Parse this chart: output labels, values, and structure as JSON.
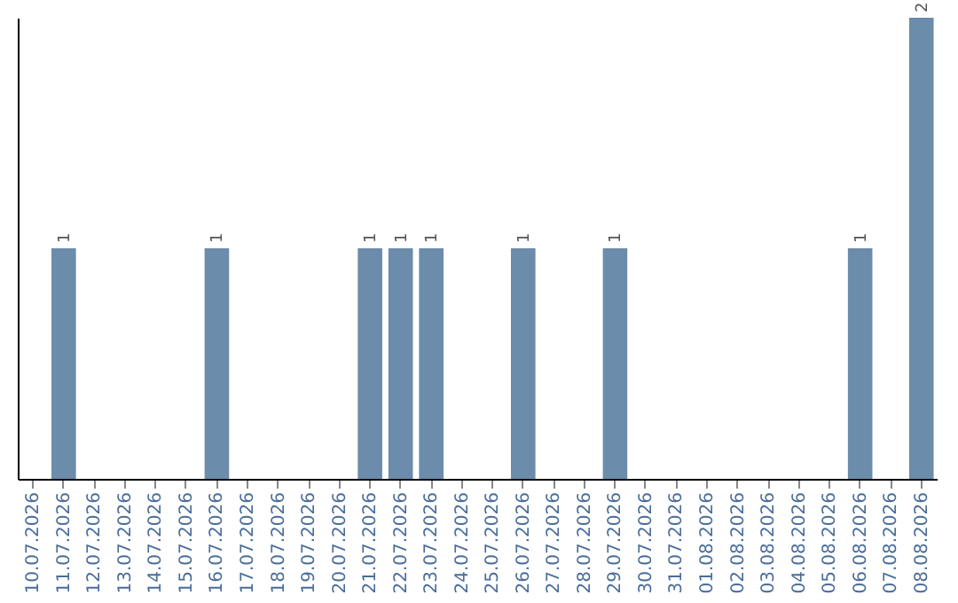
{
  "chart_data": {
    "type": "bar",
    "categories": [
      "10.07.2026",
      "11.07.2026",
      "12.07.2026",
      "13.07.2026",
      "14.07.2026",
      "15.07.2026",
      "16.07.2026",
      "17.07.2026",
      "18.07.2026",
      "19.07.2026",
      "20.07.2026",
      "21.07.2026",
      "22.07.2026",
      "23.07.2026",
      "24.07.2026",
      "25.07.2026",
      "26.07.2026",
      "27.07.2026",
      "28.07.2026",
      "29.07.2026",
      "30.07.2026",
      "31.07.2026",
      "01.08.2026",
      "02.08.2026",
      "03.08.2026",
      "04.08.2026",
      "05.08.2026",
      "06.08.2026",
      "07.08.2026",
      "08.08.2026"
    ],
    "values": [
      0,
      1,
      0,
      0,
      0,
      0,
      1,
      0,
      0,
      0,
      0,
      1,
      1,
      1,
      0,
      0,
      1,
      0,
      0,
      1,
      0,
      0,
      0,
      0,
      0,
      0,
      0,
      1,
      0,
      2
    ],
    "value_labels": [
      null,
      "1",
      null,
      null,
      null,
      null,
      "1",
      null,
      null,
      null,
      null,
      "1",
      "1",
      "1",
      null,
      null,
      "1",
      null,
      null,
      "1",
      null,
      null,
      null,
      null,
      null,
      null,
      null,
      "1",
      null,
      "2"
    ],
    "color": "#6b8cab",
    "ylim": [
      0,
      2
    ],
    "tick_labels": "x",
    "grid": false
  }
}
